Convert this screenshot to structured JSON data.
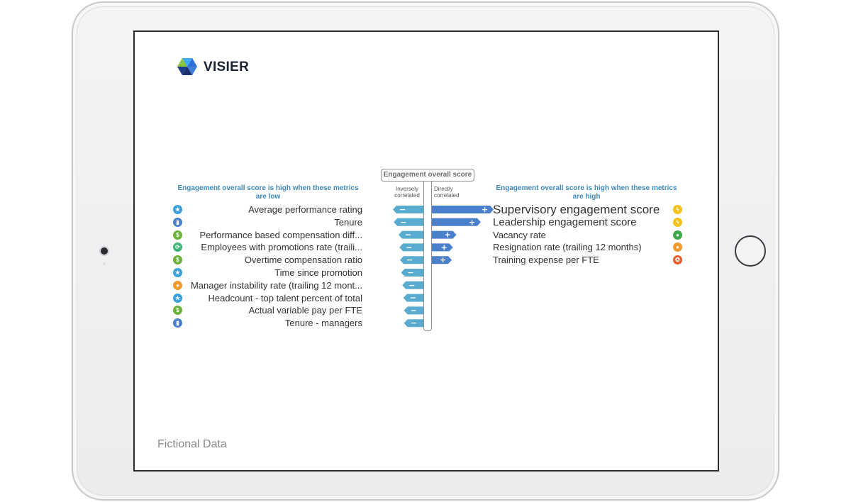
{
  "brand": {
    "name": "VISIER"
  },
  "header": {
    "target_metric": "Engagement overall score",
    "inverse_label": "Inversely correlated",
    "direct_label": "Directly correlated",
    "left_title": "Engagement overall score is high when these metrics are low",
    "right_title": "Engagement overall score is high when these metrics are high"
  },
  "colors": {
    "inverse_bar": "#5aabd0",
    "direct_bar": "#4a7fcb",
    "title_blue": "#3e88b9"
  },
  "chart_data": {
    "type": "bar",
    "title": "Engagement overall score",
    "inverse_series": {
      "name": "Inversely correlated",
      "categories": [
        "Average performance rating",
        "Tenure",
        "Performance based compensation diff...",
        "Employees with promotions rate (traili...",
        "Overtime compensation ratio",
        "Time since promotion",
        "Manager instability rate (trailing 12 mont...",
        "Headcount - top talent percent of total",
        "Actual variable pay per FTE",
        "Tenure - managers"
      ],
      "values": [
        0.95,
        0.92,
        0.75,
        0.72,
        0.7,
        0.66,
        0.62,
        0.58,
        0.56,
        0.56
      ],
      "icons": [
        "star-icon",
        "chart-icon",
        "dollar-icon",
        "refresh-icon",
        "dollar-icon",
        "star-icon",
        "person-icon",
        "star-icon",
        "dollar-icon",
        "chart-icon"
      ],
      "icon_colors": [
        "#3aa0dc",
        "#4a7fcb",
        "#6ab23a",
        "#3fb57a",
        "#6ab23a",
        "#3aa0dc",
        "#f29a2e",
        "#3aa0dc",
        "#6ab23a",
        "#4a7fcb"
      ]
    },
    "direct_series": {
      "name": "Directly correlated",
      "categories": [
        "Supervisory engagement score",
        "Leadership engagement score",
        "Vacancy rate",
        "Resignation rate (trailing 12 months)",
        "Training expense per FTE"
      ],
      "values": [
        1.0,
        0.78,
        0.36,
        0.3,
        0.28
      ],
      "icons": [
        "bolt-icon",
        "bolt-icon",
        "person-icon",
        "person-icon",
        "award-icon"
      ],
      "icon_colors": [
        "#f2c11d",
        "#f2c11d",
        "#3fa84a",
        "#f29a2e",
        "#ee5a2a"
      ]
    },
    "xlim": [
      0,
      1
    ]
  },
  "footer": {
    "watermark": "Fictional Data"
  }
}
